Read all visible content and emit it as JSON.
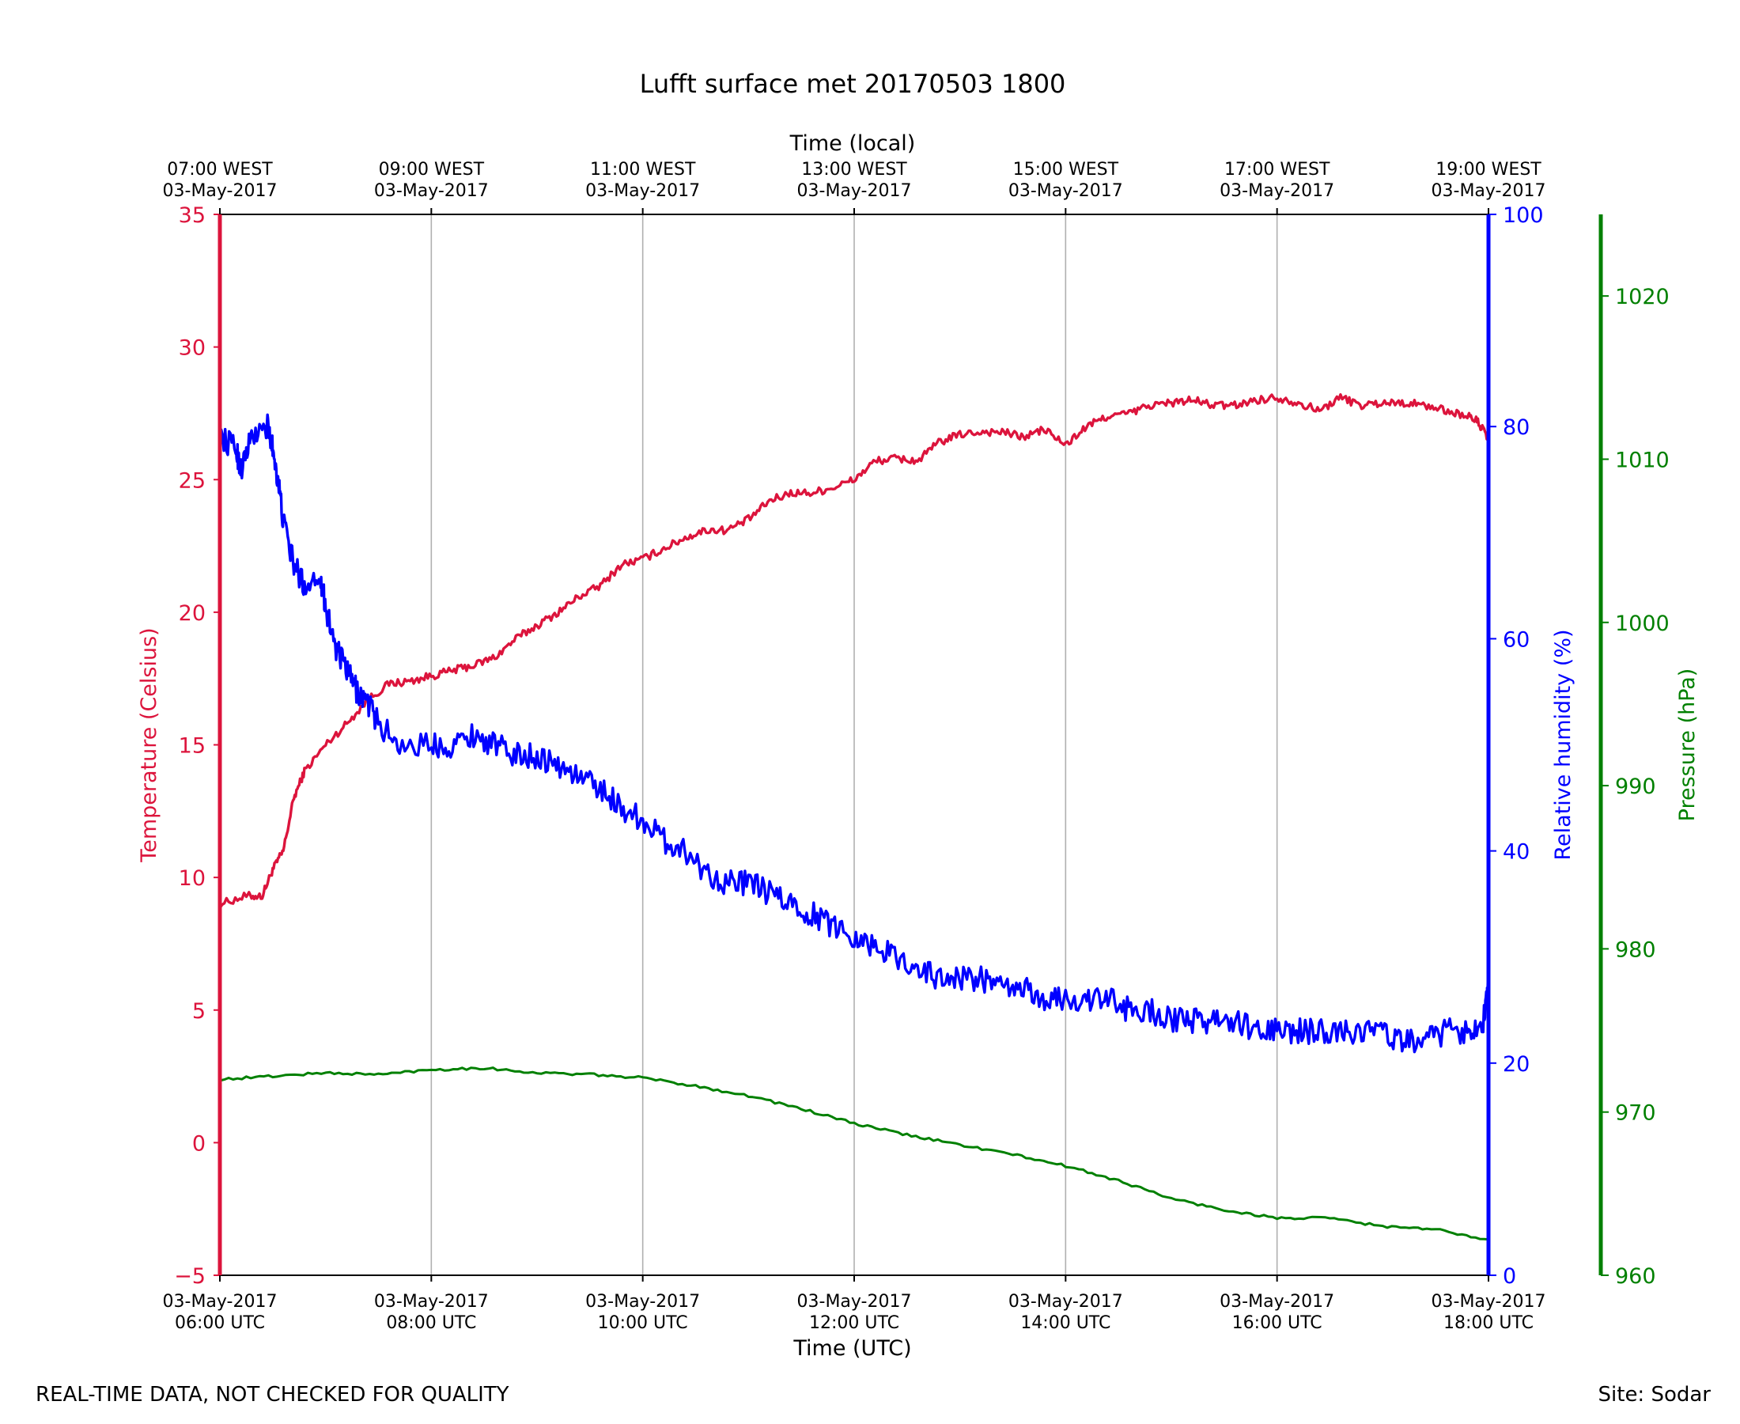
{
  "chart_data": {
    "type": "line",
    "title": "Lufft surface met 20170503 1800",
    "xlabel": "Time (UTC)",
    "xlabel_top": "Time (local)",
    "x_unit": "hours UTC",
    "xlim": [
      6,
      18
    ],
    "x_ticks": [
      6,
      8,
      10,
      12,
      14,
      16,
      18
    ],
    "x_tick_labels_bottom": [
      [
        "03-May-2017",
        "06:00 UTC"
      ],
      [
        "03-May-2017",
        "08:00 UTC"
      ],
      [
        "03-May-2017",
        "10:00 UTC"
      ],
      [
        "03-May-2017",
        "12:00 UTC"
      ],
      [
        "03-May-2017",
        "14:00 UTC"
      ],
      [
        "03-May-2017",
        "16:00 UTC"
      ],
      [
        "03-May-2017",
        "18:00 UTC"
      ]
    ],
    "x_tick_labels_top": [
      [
        "07:00 WEST",
        "03-May-2017"
      ],
      [
        "09:00 WEST",
        "03-May-2017"
      ],
      [
        "11:00 WEST",
        "03-May-2017"
      ],
      [
        "13:00 WEST",
        "03-May-2017"
      ],
      [
        "15:00 WEST",
        "03-May-2017"
      ],
      [
        "17:00 WEST",
        "03-May-2017"
      ],
      [
        "19:00 WEST",
        "03-May-2017"
      ]
    ],
    "grid": "vertical",
    "axes": [
      {
        "id": "temp",
        "label": "Temperature (Celsius)",
        "color": "#dc143c",
        "side": "left",
        "ylim": [
          -5,
          35
        ],
        "ticks": [
          -5,
          0,
          5,
          10,
          15,
          20,
          25,
          30,
          35
        ],
        "tick_labels": [
          "−5",
          "0",
          "5",
          "10",
          "15",
          "20",
          "25",
          "30",
          "35"
        ]
      },
      {
        "id": "rh",
        "label": "Relative humidity (%)",
        "color": "#0000ff",
        "side": "right",
        "ylim": [
          0,
          100
        ],
        "ticks": [
          0,
          20,
          40,
          60,
          80,
          100
        ],
        "tick_labels": [
          "0",
          "20",
          "40",
          "60",
          "80",
          "100"
        ]
      },
      {
        "id": "pres",
        "label": "Pressure (hPa)",
        "color": "#008000",
        "side": "right-outer",
        "ylim": [
          960,
          1025
        ],
        "ticks": [
          960,
          970,
          980,
          990,
          1000,
          1010,
          1020
        ],
        "tick_labels": [
          "960",
          "970",
          "980",
          "990",
          "1000",
          "1010",
          "1020"
        ]
      }
    ],
    "series": [
      {
        "name": "Temperature",
        "axis": "temp",
        "color": "#dc143c",
        "x": [
          6.0,
          6.25,
          6.4,
          6.5,
          6.6,
          6.7,
          6.8,
          7.0,
          7.2,
          7.4,
          7.6,
          7.8,
          8.0,
          8.2,
          8.4,
          8.6,
          8.8,
          9.0,
          9.2,
          9.4,
          9.6,
          9.8,
          10.0,
          10.2,
          10.4,
          10.6,
          10.8,
          11.0,
          11.2,
          11.4,
          11.6,
          11.8,
          12.0,
          12.2,
          12.4,
          12.6,
          12.8,
          13.0,
          13.2,
          13.4,
          13.6,
          13.8,
          14.0,
          14.2,
          14.4,
          14.6,
          14.8,
          15.0,
          15.2,
          15.4,
          15.6,
          15.8,
          16.0,
          16.2,
          16.4,
          16.6,
          16.8,
          17.0,
          17.2,
          17.4,
          17.6,
          17.8,
          17.9,
          18.0
        ],
        "values": [
          9.0,
          9.3,
          9.3,
          10.3,
          11.0,
          13.0,
          14.0,
          15.0,
          15.8,
          16.7,
          17.3,
          17.4,
          17.6,
          17.8,
          18.0,
          18.3,
          19.0,
          19.5,
          20.0,
          20.6,
          21.0,
          21.8,
          22.0,
          22.4,
          22.8,
          23.1,
          23.1,
          23.5,
          24.2,
          24.5,
          24.5,
          24.7,
          25.0,
          25.7,
          25.8,
          25.7,
          26.4,
          26.7,
          26.8,
          26.8,
          26.6,
          26.9,
          26.3,
          27.0,
          27.4,
          27.5,
          27.8,
          27.9,
          28.0,
          27.8,
          27.8,
          28.0,
          28.1,
          27.9,
          27.6,
          28.1,
          27.8,
          27.9,
          27.9,
          27.8,
          27.6,
          27.4,
          27.2,
          26.5
        ],
        "noise": 0.15
      },
      {
        "name": "Relative humidity",
        "axis": "rh",
        "color": "#0000ff",
        "x": [
          6.0,
          6.15,
          6.2,
          6.3,
          6.45,
          6.5,
          6.55,
          6.6,
          6.7,
          6.8,
          6.95,
          7.0,
          7.1,
          7.2,
          7.3,
          7.4,
          7.5,
          7.7,
          8.0,
          8.2,
          8.4,
          8.6,
          8.8,
          9.0,
          9.2,
          9.4,
          9.6,
          9.8,
          10.0,
          10.2,
          10.4,
          10.6,
          10.8,
          11.0,
          11.2,
          11.4,
          11.6,
          11.8,
          12.0,
          12.2,
          12.4,
          12.6,
          12.8,
          13.0,
          13.2,
          13.4,
          13.6,
          13.8,
          14.0,
          14.2,
          14.4,
          14.6,
          14.8,
          15.0,
          15.2,
          15.4,
          15.6,
          15.8,
          16.0,
          16.2,
          16.4,
          16.6,
          16.8,
          17.0,
          17.2,
          17.4,
          17.6,
          17.8,
          17.95,
          18.0
        ],
        "values": [
          79,
          78,
          76,
          79,
          80,
          78,
          75,
          71,
          67,
          65,
          66,
          63,
          59,
          57,
          55,
          54,
          52,
          50,
          50,
          50,
          51,
          50,
          49,
          49,
          48,
          47,
          46,
          44,
          43,
          41,
          40,
          38,
          37,
          37,
          36,
          35,
          34,
          33,
          32,
          31,
          30,
          29,
          28,
          28,
          28,
          27,
          27,
          26,
          26,
          26,
          26,
          25,
          25,
          24,
          24,
          24,
          24,
          23,
          23,
          23,
          23,
          23,
          23,
          23,
          22,
          22,
          23,
          23,
          24,
          28
        ],
        "noise": 1.2
      },
      {
        "name": "Pressure",
        "axis": "pres",
        "color": "#008000",
        "x": [
          6.0,
          6.5,
          7.0,
          7.5,
          8.0,
          8.5,
          9.0,
          9.5,
          10.0,
          10.5,
          11.0,
          11.5,
          12.0,
          12.5,
          13.0,
          13.5,
          14.0,
          14.5,
          15.0,
          15.5,
          16.0,
          16.5,
          17.0,
          17.5,
          18.0
        ],
        "values": [
          972.0,
          972.2,
          972.4,
          972.3,
          972.6,
          972.7,
          972.4,
          972.3,
          972.1,
          971.6,
          971.0,
          970.2,
          969.3,
          968.6,
          968.0,
          967.4,
          966.7,
          965.8,
          964.7,
          964.0,
          963.5,
          963.5,
          963.0,
          962.8,
          962.2
        ],
        "noise": 0.08
      }
    ]
  },
  "footer": {
    "disclaimer": "REAL-TIME DATA, NOT CHECKED FOR QUALITY",
    "site": "Site: Sodar"
  }
}
